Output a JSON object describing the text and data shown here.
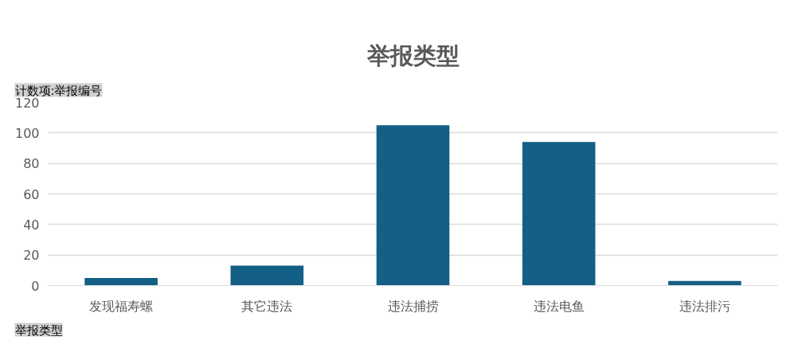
{
  "chart_data": {
    "type": "bar",
    "title": "举报类型",
    "categories": [
      "发现福寿螺",
      "其它违法",
      "违法捕捞",
      "违法电鱼",
      "违法排污"
    ],
    "values": [
      5,
      13,
      105,
      94,
      3
    ],
    "color": "#135f85",
    "ylim": [
      0,
      120
    ],
    "yticks": [
      0,
      20,
      40,
      60,
      80,
      100,
      120
    ],
    "grid": "y",
    "annotations": [
      "计数项:举报编号",
      "举报类型"
    ]
  }
}
